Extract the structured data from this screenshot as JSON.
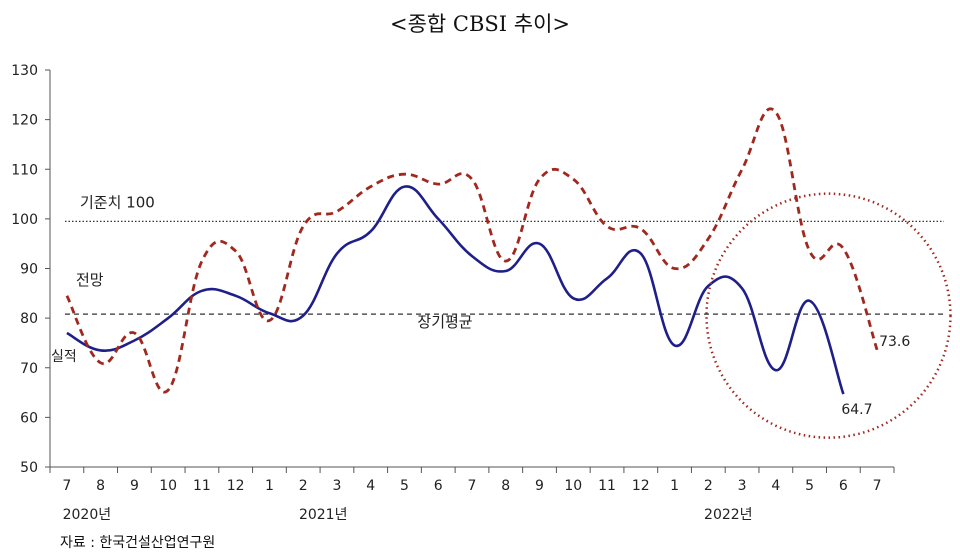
{
  "chart_data": {
    "type": "line",
    "title": "<종합 CBSI 추이>",
    "xlabel": "",
    "ylabel": "",
    "ylim": [
      50,
      130
    ],
    "yticks": [
      50,
      60,
      70,
      80,
      90,
      100,
      110,
      120,
      130
    ],
    "categories": [
      "7",
      "8",
      "9",
      "10",
      "11",
      "12",
      "1",
      "2",
      "3",
      "4",
      "5",
      "6",
      "7",
      "8",
      "9",
      "10",
      "11",
      "12",
      "1",
      "2",
      "3",
      "4",
      "5",
      "6",
      "7"
    ],
    "year_labels": [
      {
        "label": "2020년",
        "index": 0
      },
      {
        "label": "2021년",
        "index": 7
      },
      {
        "label": "2022년",
        "index": 19
      }
    ],
    "series": [
      {
        "name": "실적",
        "color": "#1f1f8a",
        "dash": false,
        "values": [
          77.0,
          73.5,
          75.5,
          80.0,
          85.5,
          84.5,
          81.0,
          80.5,
          93.0,
          97.5,
          106.5,
          100.0,
          92.5,
          89.5,
          95.0,
          84.0,
          88.0,
          93.0,
          74.5,
          86.5,
          86.0,
          69.5,
          83.5,
          64.7,
          null
        ]
      },
      {
        "name": "전망",
        "color": "#a0281e",
        "dash": true,
        "values": [
          84.5,
          71.0,
          77.0,
          65.5,
          91.5,
          93.5,
          79.5,
          98.5,
          101.5,
          106.5,
          109.0,
          107.0,
          108.0,
          91.5,
          108.0,
          108.0,
          98.5,
          98.0,
          90.0,
          96.0,
          110.0,
          121.5,
          93.5,
          94.0,
          73.6
        ]
      }
    ],
    "reference_lines": [
      {
        "label": "기준치 100",
        "value": 99.5,
        "style": "dotted"
      },
      {
        "label": "장기평균",
        "value": 80.8,
        "style": "dashed"
      }
    ],
    "annotations": {
      "last_actual": "64.7",
      "last_outlook": "73.6"
    }
  },
  "source_text": "자료 : 한국건설산업연구원"
}
